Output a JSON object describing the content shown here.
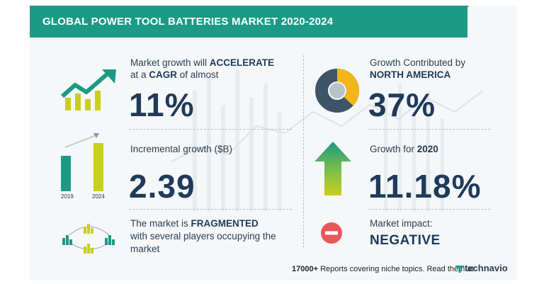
{
  "title": "GLOBAL POWER TOOL BATTERIES MARKET 2020-2024",
  "left": {
    "growth": {
      "line1_pre": "Market growth will ",
      "line1_bold": "ACCELERATE",
      "line2_pre": "at a ",
      "line2_bold": "CAGR",
      "line2_post": " of almost",
      "value": "11%"
    },
    "incremental": {
      "label": "Incremental growth ($B)",
      "value": "2.39",
      "years": [
        "2019",
        "2024"
      ]
    },
    "fragmented": {
      "line1_pre": "The market is ",
      "line1_bold": "FRAGMENTED",
      "line2": "with several players occupying the",
      "line3": "market"
    }
  },
  "right": {
    "region": {
      "line1": "Growth Contributed by",
      "line2": "NORTH AMERICA",
      "value": "37%",
      "share": 0.37
    },
    "yoy": {
      "label_pre": "Growth for ",
      "label_bold": "2020",
      "value": "11.18%"
    },
    "impact": {
      "label": "Market impact:",
      "value": "NEGATIVE"
    }
  },
  "footer": {
    "count": "17000+",
    "text": " Reports covering niche topics. Read them at",
    "brand": "technavio"
  },
  "colors": {
    "teal": "#1c9a86",
    "lime": "#c9cf1e",
    "navy": "#1f3a5a",
    "red": "#e8585a",
    "gold": "#f2b61b",
    "slate": "#3e5468"
  }
}
